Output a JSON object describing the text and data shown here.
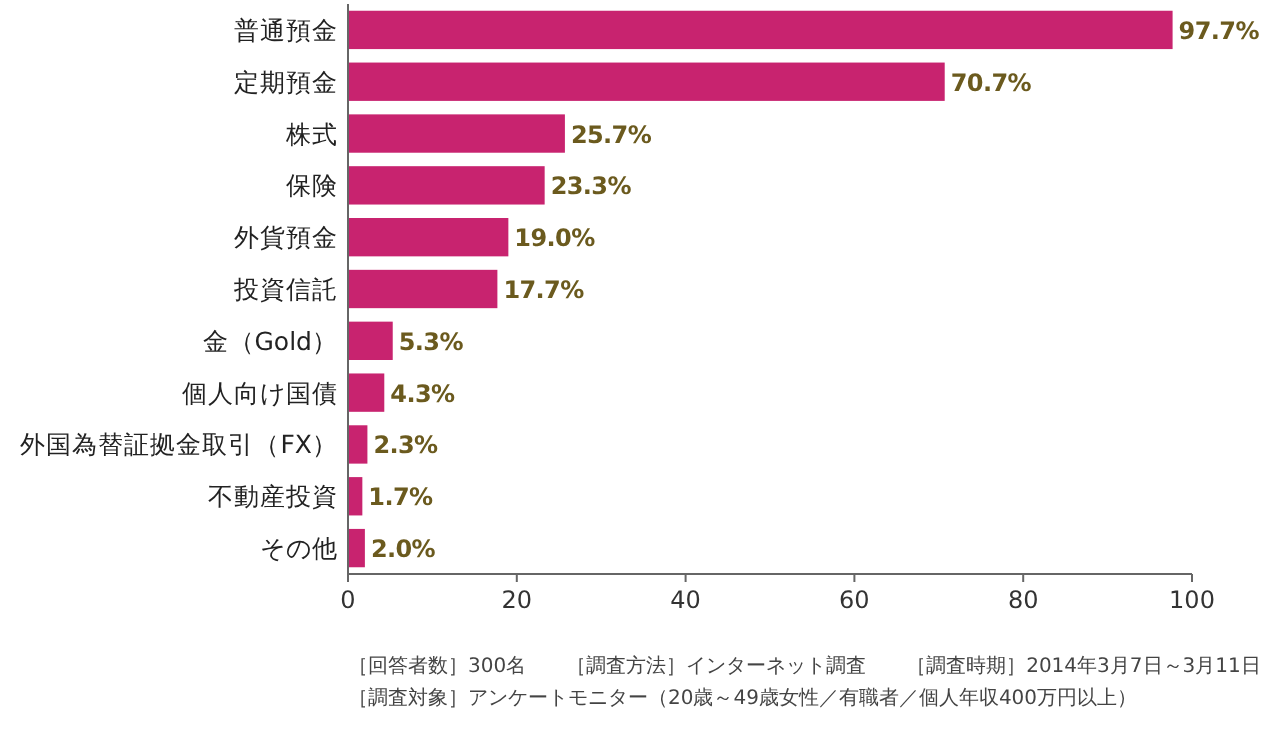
{
  "chart_data": {
    "type": "bar",
    "orientation": "horizontal",
    "categories": [
      "普通預金",
      "定期預金",
      "株式",
      "保険",
      "外貨預金",
      "投資信託",
      "金（Gold）",
      "個人向け国債",
      "外国為替証拠金取引（FX）",
      "不動産投資",
      "その他"
    ],
    "values": [
      97.7,
      70.7,
      25.7,
      23.3,
      19.0,
      17.7,
      5.3,
      4.3,
      2.3,
      1.7,
      2.0
    ],
    "value_labels": [
      "97.7%",
      "70.7%",
      "25.7%",
      "23.3%",
      "19.0%",
      "17.7%",
      "5.3%",
      "4.3%",
      "2.3%",
      "1.7%",
      "2.0%"
    ],
    "color": "#c8236f",
    "xlim": [
      0,
      100
    ],
    "xticks": [
      0,
      20,
      40,
      60,
      80,
      100
    ],
    "grid": false,
    "annotations": [
      "［回答者数］300名　　［調査方法］インターネット調査　　［調査時期］2014年3月7日～3月11日",
      "［調査対象］アンケートモニター（20歳～49歳女性／有職者／個人年収400万円以上）"
    ]
  }
}
